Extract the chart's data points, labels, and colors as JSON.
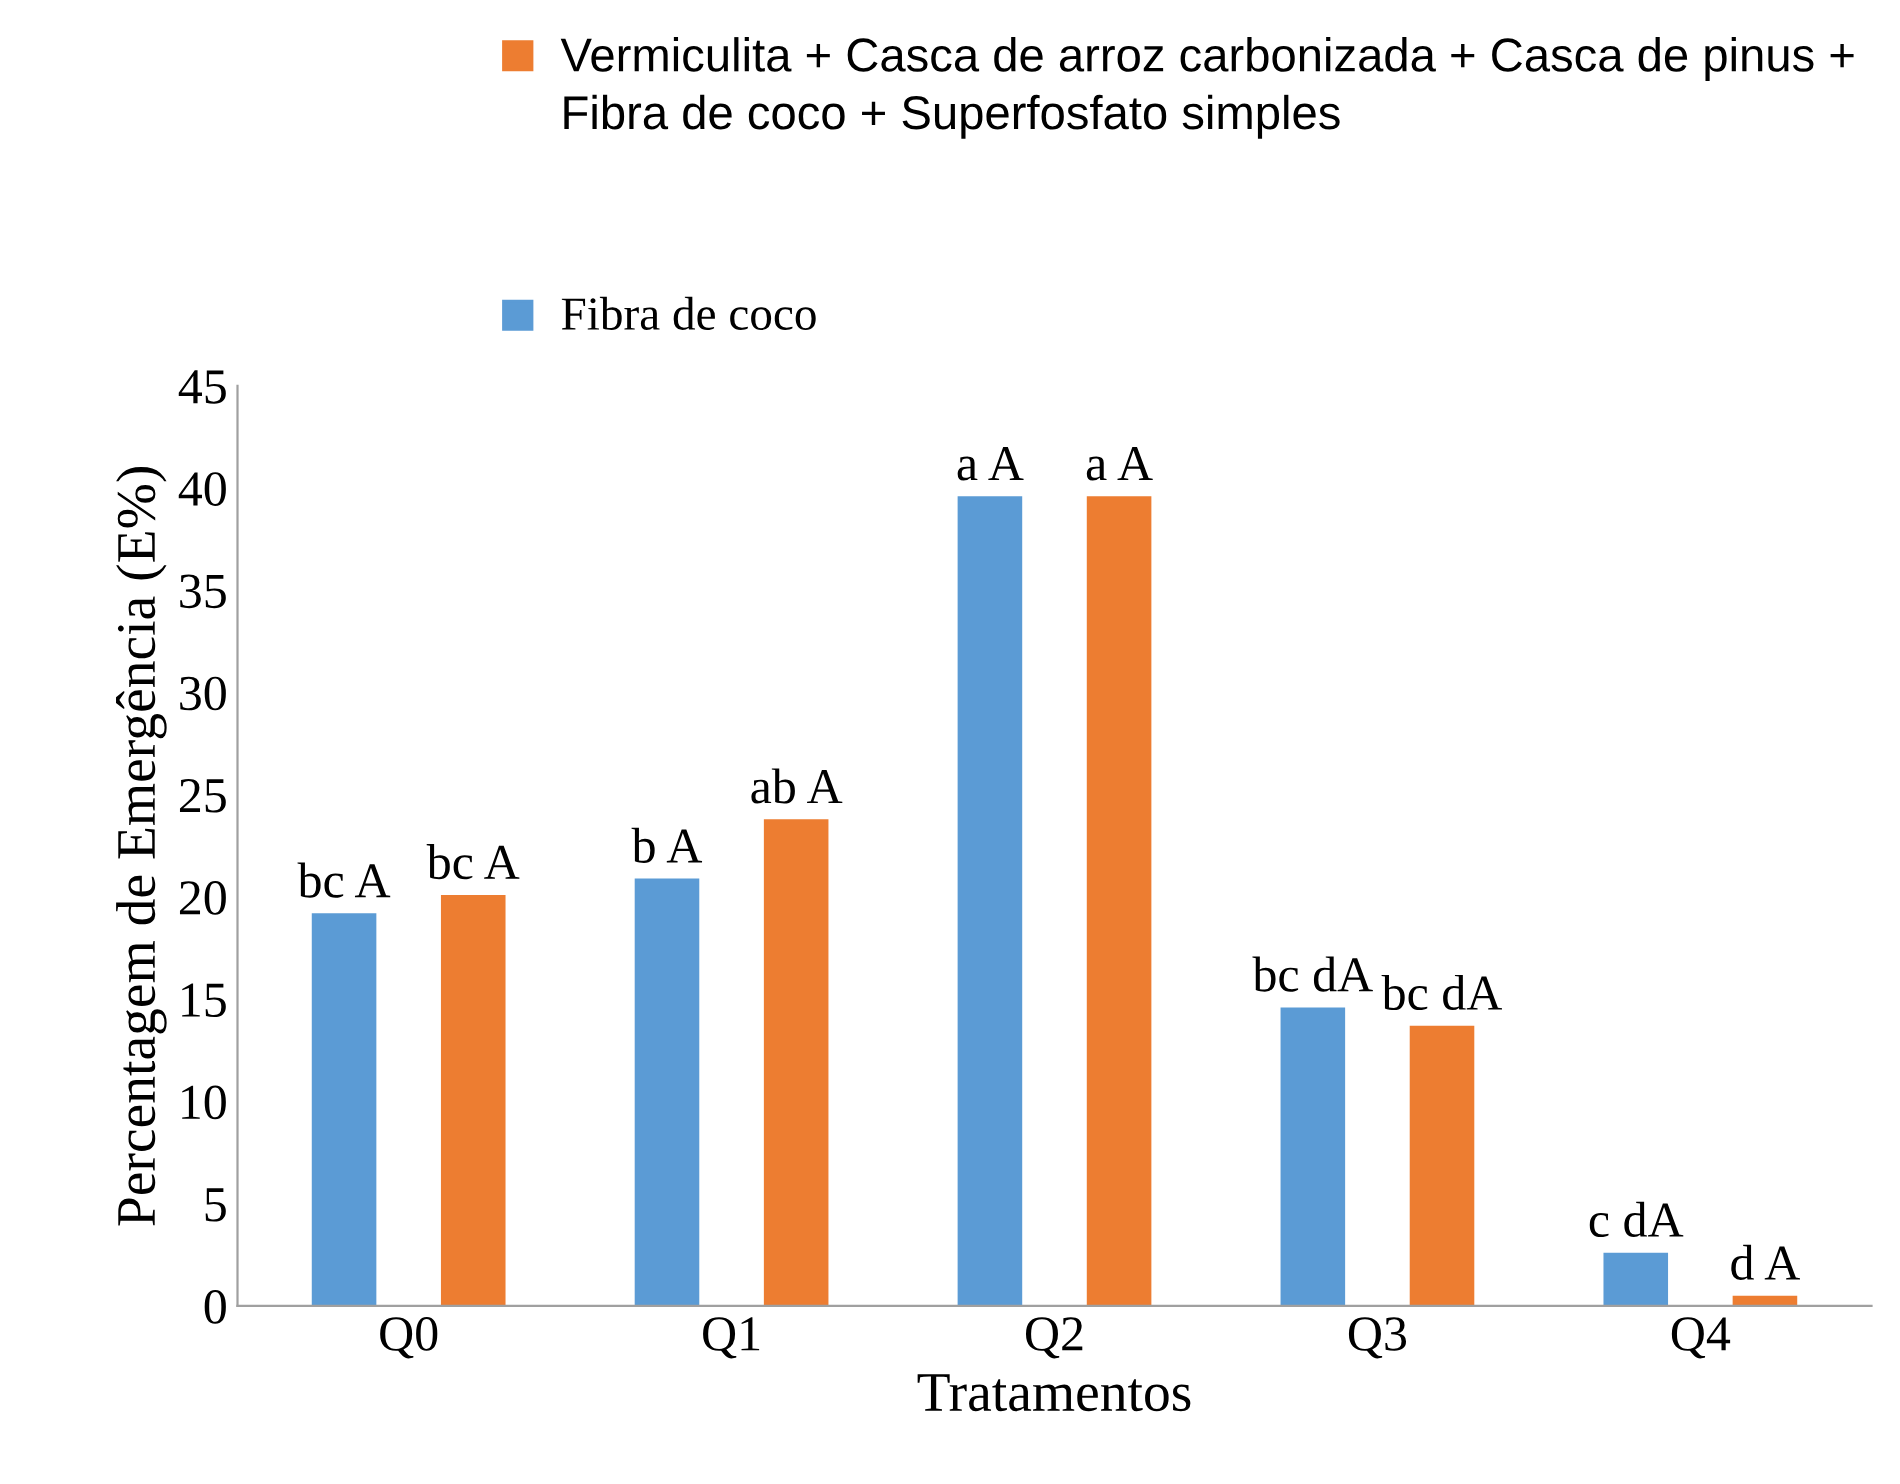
{
  "chart_data": {
    "type": "bar",
    "xlabel": "Tratamentos",
    "ylabel": "Percentagem de Emergência (E%)",
    "categories": [
      "Q0",
      "Q1",
      "Q2",
      "Q3",
      "Q4"
    ],
    "series": [
      {
        "name": "Fibra de coco",
        "color": "#5b9bd5",
        "values": [
          19.2,
          20.9,
          39.6,
          14.6,
          2.6
        ],
        "value_labels": [
          "bc A",
          "b A",
          "a A",
          "bc dA",
          "c dA"
        ]
      },
      {
        "name": "Vermiculita + Casca de arroz carbonizada + Casca de pinus + Fibra de coco + Superfosfato simples",
        "color": "#ed7d31",
        "values": [
          20.1,
          23.8,
          39.6,
          13.7,
          0.5
        ],
        "value_labels": [
          "bc A",
          "ab A",
          "a A",
          "bc dA",
          "d A"
        ]
      }
    ],
    "ylim": [
      0,
      45
    ],
    "yticks": [
      0,
      5,
      10,
      15,
      20,
      25,
      30,
      35,
      40,
      45
    ],
    "legend": "top",
    "grid": false
  }
}
